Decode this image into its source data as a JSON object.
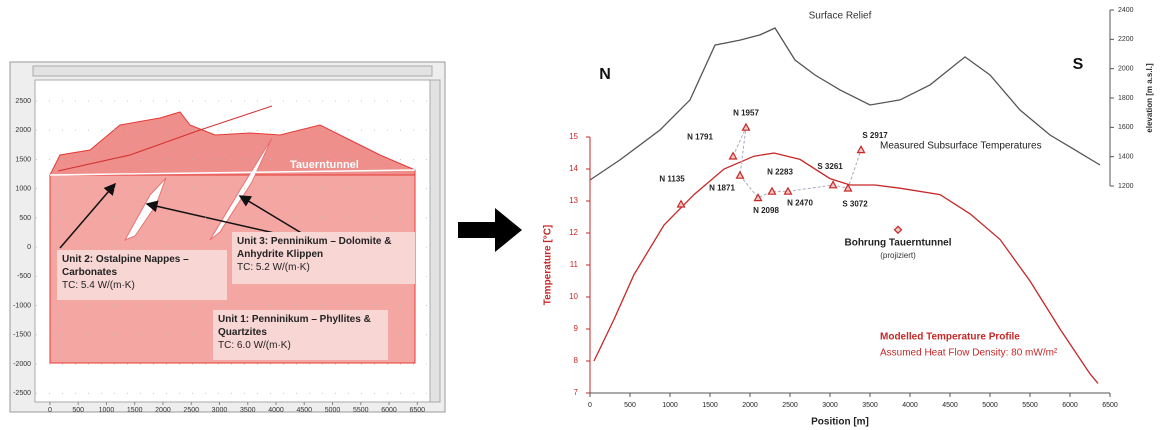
{
  "chart_data": [
    {
      "type": "section",
      "xlim": [
        -264,
        6725
      ],
      "ylim": [
        -2650,
        2860
      ],
      "xticks": [
        0,
        500,
        1000,
        1500,
        2000,
        2500,
        3000,
        3500,
        4000,
        4500,
        5000,
        5500,
        6000,
        6500
      ],
      "yticks": [
        -2500,
        -2000,
        -1500,
        -1000,
        -500,
        0,
        500,
        1000,
        1500,
        2000,
        2500
      ],
      "units": [
        {
          "name": "Unit 2: Ostalpine Nappes – Carbonates",
          "tc": "TC: 5.4 W/(m·K)"
        },
        {
          "name": "Unit 3: Penninikum – Dolomite & Anhydrite Klippen",
          "tc": "TC: 5.2 W/(m·K)"
        },
        {
          "name": "Unit 1: Penninikum – Phyllites & Quartzites",
          "tc": "TC: 6.0 W/(m·K)"
        }
      ],
      "annotations": [
        "Tauerntunnel"
      ]
    },
    {
      "type": "line",
      "xlabel": "Position [m]",
      "ylabel": "Temperature [°C]",
      "y2label": "elevation [m a.s.l.]",
      "xlim": [
        0,
        6500
      ],
      "xticks": [
        0,
        500,
        1000,
        1500,
        2000,
        2500,
        3000,
        3500,
        4000,
        4500,
        5000,
        5500,
        6000,
        6500
      ],
      "ylim": [
        7,
        15
      ],
      "yticks": [
        7,
        8,
        9,
        10,
        11,
        12,
        13,
        14,
        15
      ],
      "y2lim": [
        1200,
        2400
      ],
      "y2ticks": [
        1200,
        1400,
        1600,
        1800,
        2000,
        2200,
        2400
      ],
      "annotations": [
        "N",
        "S",
        "Assumed Heat Flow Density: 80 mW/m²"
      ],
      "series": [
        {
          "name": "Modelled Temperature Profile",
          "color": "#c62828",
          "style": "line",
          "x": [
            50,
            300,
            550,
            925,
            1300,
            1675,
            2050,
            2300,
            2625,
            3000,
            3250,
            3560,
            3875,
            4375,
            4750,
            5125,
            5500,
            5875,
            6250,
            6350
          ],
          "values": [
            8.0,
            9.3,
            10.7,
            12.25,
            13.2,
            14.0,
            14.4,
            14.5,
            14.3,
            13.7,
            13.5,
            13.5,
            13.4,
            13.2,
            12.6,
            11.8,
            10.5,
            9.0,
            7.6,
            7.3
          ]
        },
        {
          "name": "Surface Relief",
          "color": "#555555",
          "style": "line",
          "axis": "y2",
          "x": [
            0,
            375,
            875,
            1250,
            1563,
            1875,
            2125,
            2313,
            2563,
            2813,
            3125,
            3500,
            3875,
            4250,
            4688,
            5000,
            5375,
            5750,
            6063,
            6375
          ],
          "values": [
            1241,
            1378,
            1582,
            1787,
            2161,
            2195,
            2230,
            2277,
            2059,
            1957,
            1855,
            1752,
            1787,
            1889,
            2080,
            1957,
            1718,
            1548,
            1446,
            1343
          ]
        },
        {
          "name": "Measured Subsurface Temperatures",
          "color": "#c62828",
          "style": "scatter",
          "marker": "triangle",
          "x": [
            1138,
            1788,
            1950,
            1875,
            2100,
            2275,
            2475,
            3038,
            3388,
            3225
          ],
          "values": [
            12.9,
            14.4,
            15.3,
            13.8,
            13.1,
            13.3,
            13.3,
            13.5,
            14.6,
            13.4
          ],
          "labels": [
            "N 1135",
            "N 1791",
            "N 1957",
            "N 1871",
            "N 2098",
            "N 2283",
            "N 2470",
            "S 3261",
            "S 2917",
            "S 3072"
          ]
        },
        {
          "name": "Bohrung Tauerntunnel",
          "color": "#c62828",
          "style": "scatter",
          "marker": "diamond",
          "x": [
            3850
          ],
          "values": [
            12.1
          ],
          "note": "(projiziert)"
        }
      ]
    }
  ]
}
